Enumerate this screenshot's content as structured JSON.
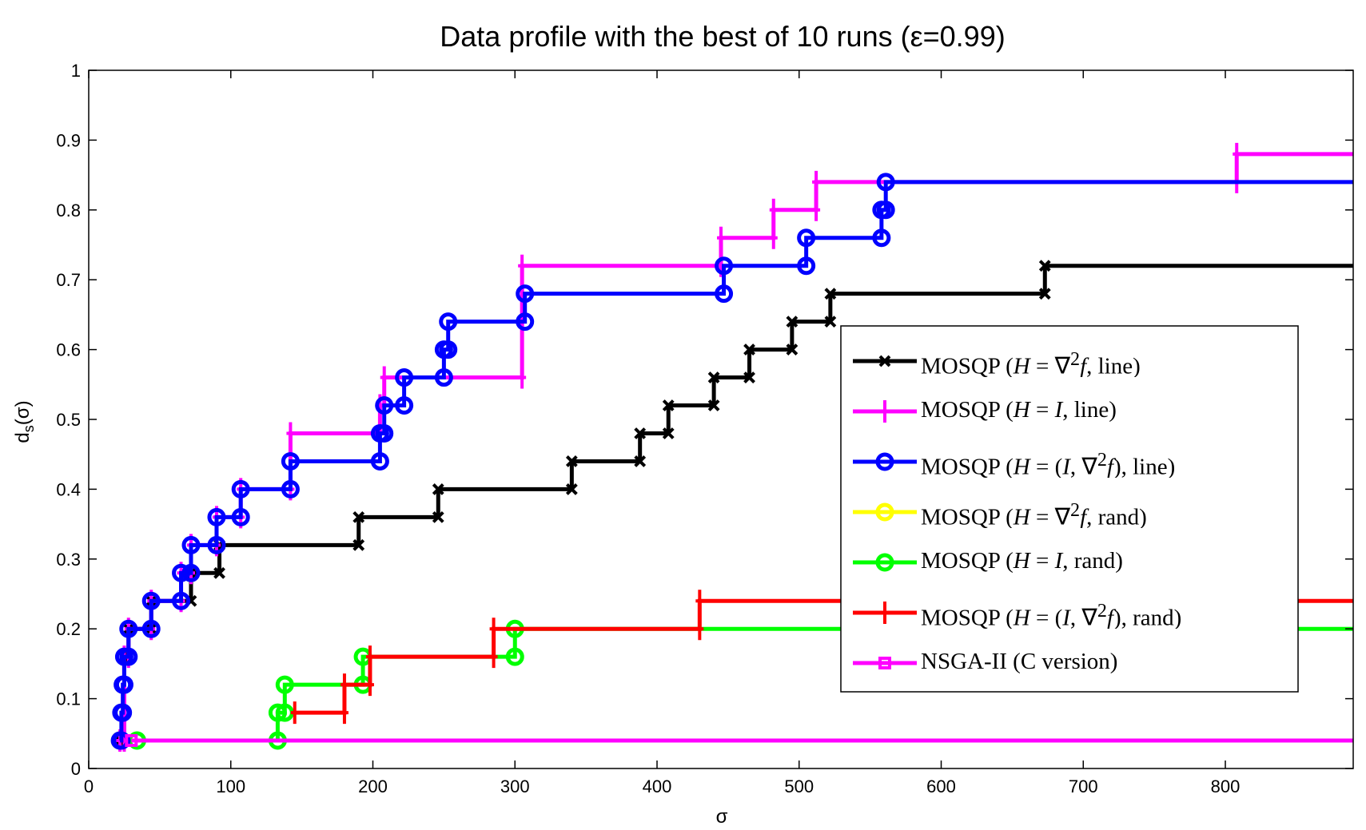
{
  "chart_data": {
    "type": "line",
    "step": true,
    "title": "Data profile with the best of 10 runs (ε=0.99)",
    "xlabel": "σ",
    "ylabel": "d_s(σ)",
    "xlim": [
      0,
      890
    ],
    "ylim": [
      0,
      1
    ],
    "xticks": [
      0,
      100,
      200,
      300,
      400,
      500,
      600,
      700,
      800
    ],
    "yticks": [
      0,
      0.1,
      0.2,
      0.3,
      0.4,
      0.5,
      0.6,
      0.7,
      0.8,
      0.9,
      1
    ],
    "grid": false,
    "legend_position": "right",
    "series": [
      {
        "name": "MOSQP (H = ∇²f, line)",
        "color": "#000000",
        "marker": "x",
        "points": [
          [
            22,
            0.04
          ],
          [
            25,
            0.16
          ],
          [
            28,
            0.2
          ],
          [
            44,
            0.24
          ],
          [
            72,
            0.28
          ],
          [
            92,
            0.32
          ],
          [
            190,
            0.36
          ],
          [
            246,
            0.4
          ],
          [
            340,
            0.44
          ],
          [
            388,
            0.48
          ],
          [
            408,
            0.52
          ],
          [
            440,
            0.56
          ],
          [
            465,
            0.6
          ],
          [
            495,
            0.64
          ],
          [
            522,
            0.68
          ],
          [
            673,
            0.72
          ],
          [
            890,
            0.72
          ]
        ]
      },
      {
        "name": "MOSQP (H = I, line)",
        "color": "#ff00ff",
        "marker": "+",
        "points": [
          [
            22,
            0.04
          ],
          [
            25,
            0.16
          ],
          [
            28,
            0.2
          ],
          [
            44,
            0.24
          ],
          [
            65,
            0.28
          ],
          [
            72,
            0.32
          ],
          [
            90,
            0.36
          ],
          [
            107,
            0.4
          ],
          [
            142,
            0.48
          ],
          [
            205,
            0.52
          ],
          [
            208,
            0.56
          ],
          [
            305,
            0.72
          ],
          [
            445,
            0.76
          ],
          [
            482,
            0.8
          ],
          [
            512,
            0.84
          ],
          [
            808,
            0.88
          ],
          [
            890,
            0.88
          ]
        ]
      },
      {
        "name": "MOSQP (H = (I,∇²f), line)",
        "color": "#0000ff",
        "marker": "o",
        "points": [
          [
            22,
            0.04
          ],
          [
            23,
            0.08
          ],
          [
            24,
            0.12
          ],
          [
            25,
            0.16
          ],
          [
            28,
            0.2
          ],
          [
            44,
            0.24
          ],
          [
            65,
            0.28
          ],
          [
            72,
            0.32
          ],
          [
            90,
            0.36
          ],
          [
            107,
            0.4
          ],
          [
            142,
            0.44
          ],
          [
            205,
            0.48
          ],
          [
            208,
            0.52
          ],
          [
            222,
            0.56
          ],
          [
            250,
            0.6
          ],
          [
            253,
            0.64
          ],
          [
            307,
            0.68
          ],
          [
            447,
            0.72
          ],
          [
            505,
            0.76
          ],
          [
            558,
            0.8
          ],
          [
            561,
            0.84
          ],
          [
            890,
            0.84
          ]
        ]
      },
      {
        "name": "MOSQP (H = ∇²f, rand)",
        "color": "#ffff00",
        "marker": "o",
        "points": [
          [
            22,
            0.04
          ],
          [
            890,
            0.04
          ]
        ]
      },
      {
        "name": "MOSQP (H = I, rand)",
        "color": "#00ff00",
        "marker": "o",
        "points": [
          [
            34,
            0.04
          ],
          [
            133,
            0.08
          ],
          [
            138,
            0.12
          ],
          [
            193,
            0.16
          ],
          [
            300,
            0.2
          ],
          [
            890,
            0.2
          ]
        ]
      },
      {
        "name": "MOSQP (H = (I,∇²f), rand)",
        "color": "#ff0000",
        "marker": "+",
        "points": [
          [
            145,
            0.08
          ],
          [
            180,
            0.12
          ],
          [
            198,
            0.16
          ],
          [
            285,
            0.2
          ],
          [
            430,
            0.24
          ],
          [
            890,
            0.24
          ]
        ]
      },
      {
        "name": "NSGA-II (C version)",
        "color": "#ff00ff",
        "marker": "s",
        "points": [
          [
            30,
            0.04
          ],
          [
            890,
            0.04
          ]
        ]
      }
    ]
  },
  "legend_html": [
    "MOSQP (<i>H</i> = ∇<sup>2</sup><i>f</i>, line)",
    "MOSQP (<i>H</i> = <i>I</i>, line)",
    "MOSQP (<i>H</i> = (<i>I</i>, ∇<sup>2</sup><i>f</i>), line)",
    "MOSQP (<i>H</i> = ∇<sup>2</sup><i>f</i>, rand)",
    "MOSQP (<i>H</i> = <i>I</i>, rand)",
    "MOSQP (<i>H</i> = (<i>I</i>, ∇<sup>2</sup><i>f</i>), rand)",
    "NSGA-II (C version)"
  ]
}
